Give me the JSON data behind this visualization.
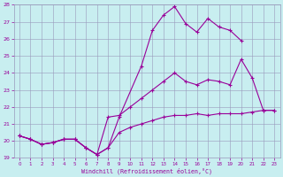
{
  "xlabel": "Windchill (Refroidissement éolien,°C)",
  "series1_x": [
    0,
    1,
    2,
    3,
    4,
    5,
    6,
    7,
    8,
    9,
    10,
    11,
    12,
    13,
    14,
    15,
    16,
    17,
    18,
    19,
    20,
    21,
    22,
    23
  ],
  "series1_y": [
    20.3,
    20.1,
    19.8,
    19.9,
    20.1,
    20.1,
    19.6,
    19.2,
    19.6,
    20.5,
    20.8,
    21.0,
    21.2,
    21.4,
    21.5,
    21.5,
    21.6,
    21.5,
    21.6,
    21.6,
    21.6,
    21.7,
    21.8,
    21.8
  ],
  "series2_x": [
    0,
    1,
    2,
    3,
    4,
    5,
    6,
    7,
    8,
    9,
    10,
    11,
    12,
    13,
    14,
    15,
    16,
    17,
    18,
    19,
    20,
    21,
    22,
    23
  ],
  "series2_y": [
    20.3,
    20.1,
    19.8,
    19.9,
    20.1,
    20.1,
    19.6,
    19.2,
    21.4,
    21.5,
    22.0,
    22.5,
    23.0,
    23.5,
    24.0,
    23.5,
    23.3,
    23.6,
    23.5,
    23.3,
    24.8,
    23.7,
    21.8,
    21.8
  ],
  "series3_x": [
    0,
    1,
    2,
    3,
    4,
    5,
    6,
    7,
    8,
    9,
    11,
    12,
    13,
    14,
    15,
    16,
    17,
    18,
    19,
    20
  ],
  "series3_y": [
    20.3,
    20.1,
    19.8,
    19.9,
    20.1,
    20.1,
    19.6,
    19.2,
    19.6,
    21.4,
    24.4,
    26.5,
    27.4,
    27.9,
    26.9,
    26.4,
    27.2,
    26.7,
    26.5,
    25.9
  ],
  "ylim": [
    19,
    28
  ],
  "xlim": [
    -0.5,
    23.5
  ],
  "yticks": [
    19,
    20,
    21,
    22,
    23,
    24,
    25,
    26,
    27,
    28
  ],
  "xticks": [
    0,
    1,
    2,
    3,
    4,
    5,
    6,
    7,
    8,
    9,
    10,
    11,
    12,
    13,
    14,
    15,
    16,
    17,
    18,
    19,
    20,
    21,
    22,
    23
  ],
  "line_color": "#990099",
  "bg_color": "#c8eef0",
  "grid_color": "#9999bb"
}
